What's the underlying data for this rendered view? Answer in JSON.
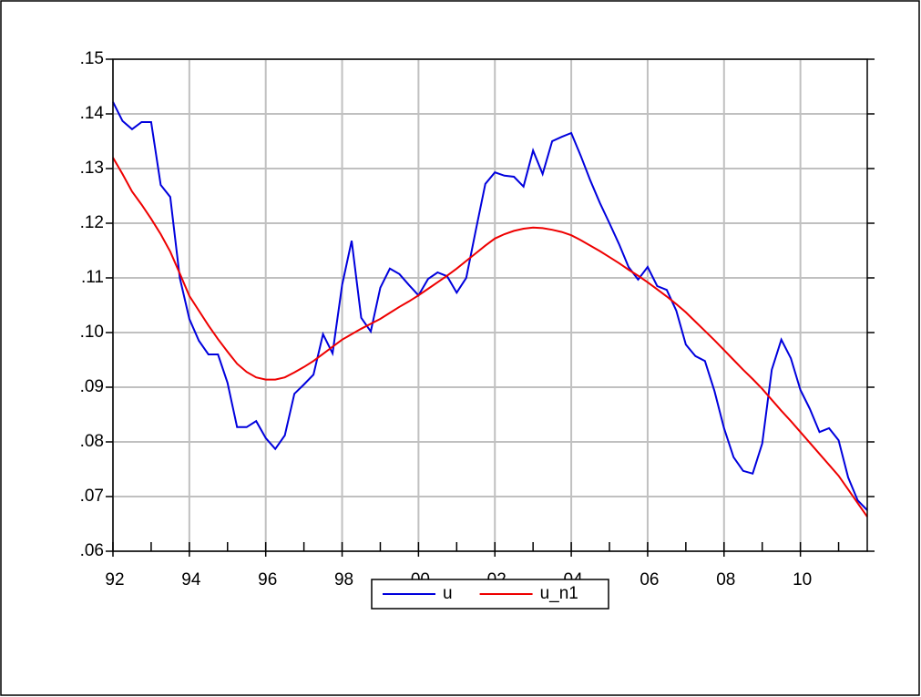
{
  "chart_data": {
    "type": "line",
    "x": [
      1992,
      1992.25,
      1992.5,
      1992.75,
      1993,
      1993.25,
      1993.5,
      1993.75,
      1994,
      1994.25,
      1994.5,
      1994.75,
      1995,
      1995.25,
      1995.5,
      1995.75,
      1996,
      1996.25,
      1996.5,
      1996.75,
      1997,
      1997.25,
      1997.5,
      1997.75,
      1998,
      1998.25,
      1998.5,
      1998.75,
      1999,
      1999.25,
      1999.5,
      1999.75,
      2000,
      2000.25,
      2000.5,
      2000.75,
      2001,
      2001.25,
      2001.5,
      2001.75,
      2002,
      2002.25,
      2002.5,
      2002.75,
      2003,
      2003.25,
      2003.5,
      2003.75,
      2004,
      2004.25,
      2004.5,
      2004.75,
      2005,
      2005.25,
      2005.5,
      2005.75,
      2006,
      2006.25,
      2006.5,
      2006.75,
      2007,
      2007.25,
      2007.5,
      2007.75,
      2008,
      2008.25,
      2008.5,
      2008.75,
      2009,
      2009.25,
      2009.5,
      2009.75,
      2010,
      2010.25,
      2010.5,
      2010.75,
      2011,
      2011.25,
      2011.5,
      2011.75
    ],
    "series": [
      {
        "name": "u",
        "color": "#0000dd",
        "values": [
          0.1422,
          0.1387,
          0.1372,
          0.1385,
          0.1385,
          0.127,
          0.1248,
          0.11,
          0.1025,
          0.0985,
          0.096,
          0.096,
          0.0908,
          0.0827,
          0.0827,
          0.0838,
          0.0807,
          0.0787,
          0.0812,
          0.0888,
          0.0905,
          0.0923,
          0.0997,
          0.0962,
          0.1087,
          0.1168,
          0.1027,
          0.1002,
          0.1082,
          0.1117,
          0.1107,
          0.1087,
          0.1068,
          0.1098,
          0.111,
          0.1103,
          0.1073,
          0.11,
          0.1187,
          0.1272,
          0.1293,
          0.1287,
          0.1285,
          0.1267,
          0.1333,
          0.129,
          0.135,
          0.1358,
          0.1365,
          0.1323,
          0.1278,
          0.1237,
          0.12,
          0.1162,
          0.112,
          0.1097,
          0.112,
          0.1085,
          0.1078,
          0.104,
          0.0978,
          0.0957,
          0.0948,
          0.0893,
          0.0825,
          0.0772,
          0.0747,
          0.0742,
          0.0797,
          0.0932,
          0.0987,
          0.0953,
          0.0895,
          0.086,
          0.0818,
          0.0825,
          0.0803,
          0.0735,
          0.0693,
          0.0675
        ]
      },
      {
        "name": "u_n1",
        "color": "#ee0000",
        "values": [
          0.132,
          0.129,
          0.1258,
          0.1234,
          0.1208,
          0.118,
          0.1148,
          0.1108,
          0.1067,
          0.104,
          0.1013,
          0.0988,
          0.0965,
          0.0943,
          0.0928,
          0.0918,
          0.0914,
          0.0914,
          0.0918,
          0.0927,
          0.0937,
          0.0948,
          0.0961,
          0.0974,
          0.0987,
          0.0997,
          0.1007,
          0.1016,
          0.1025,
          0.1036,
          0.1047,
          0.1057,
          0.1068,
          0.108,
          0.1092,
          0.1104,
          0.1117,
          0.1131,
          0.1145,
          0.1159,
          0.1172,
          0.118,
          0.1186,
          0.119,
          0.1192,
          0.1191,
          0.1188,
          0.1184,
          0.1178,
          0.1169,
          0.1159,
          0.1149,
          0.1138,
          0.1127,
          0.1115,
          0.1104,
          0.1092,
          0.1079,
          0.1066,
          0.1052,
          0.1037,
          0.102,
          0.1003,
          0.0986,
          0.0968,
          0.095,
          0.0932,
          0.0915,
          0.0897,
          0.0877,
          0.0857,
          0.0838,
          0.0818,
          0.0798,
          0.0778,
          0.0758,
          0.0738,
          0.0713,
          0.0688,
          0.0663
        ]
      }
    ],
    "xlim": [
      1992,
      2011.75
    ],
    "xticks": [
      {
        "value": 1992,
        "label": "92"
      },
      {
        "value": 1994,
        "label": "94"
      },
      {
        "value": 1996,
        "label": "96"
      },
      {
        "value": 1998,
        "label": "98"
      },
      {
        "value": 2000,
        "label": "00"
      },
      {
        "value": 2002,
        "label": "02"
      },
      {
        "value": 2004,
        "label": "04"
      },
      {
        "value": 2006,
        "label": "06"
      },
      {
        "value": 2008,
        "label": "08"
      },
      {
        "value": 2010,
        "label": "10"
      }
    ],
    "minor_xticks": [
      1993,
      1995,
      1997,
      1999,
      2001,
      2003,
      2005,
      2007,
      2009,
      2011
    ],
    "ylim": [
      0.06,
      0.15
    ],
    "yticks": [
      {
        "value": 0.06,
        "label": ".06"
      },
      {
        "value": 0.07,
        "label": ".07"
      },
      {
        "value": 0.08,
        "label": ".08"
      },
      {
        "value": 0.09,
        "label": ".09"
      },
      {
        "value": 0.1,
        "label": ".10"
      },
      {
        "value": 0.11,
        "label": ".11"
      },
      {
        "value": 0.12,
        "label": ".12"
      },
      {
        "value": 0.13,
        "label": ".13"
      },
      {
        "value": 0.14,
        "label": ".14"
      },
      {
        "value": 0.15,
        "label": ".15"
      }
    ],
    "grid": true,
    "legend": "bottom"
  }
}
